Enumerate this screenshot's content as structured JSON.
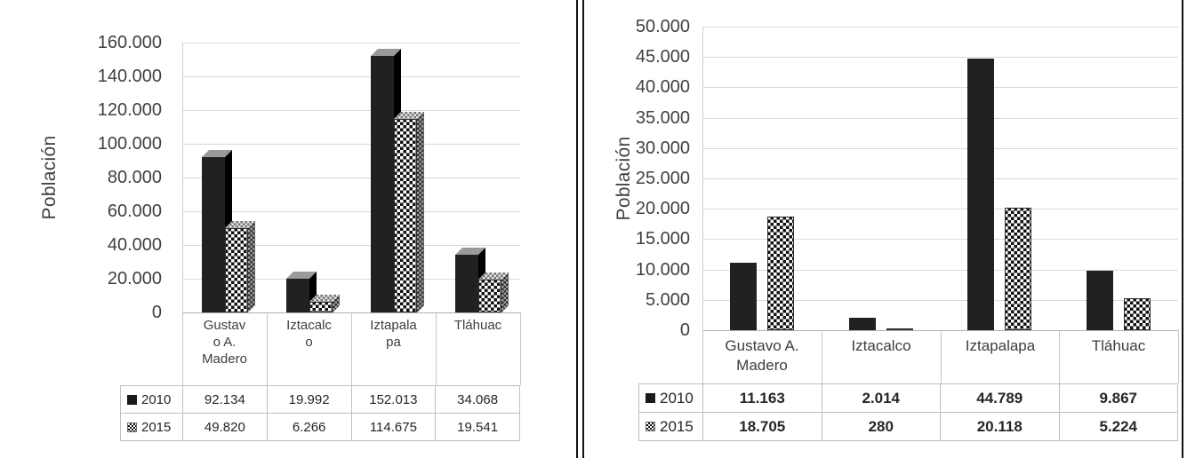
{
  "page": {
    "background": "#ffffff"
  },
  "chart_data": [
    {
      "type": "bar",
      "style": "3d-clustered-column",
      "title": "",
      "xlabel": "",
      "ylabel": "Población",
      "categories": [
        "Gustavo A. Madero",
        "Iztacalco",
        "Iztapalapa",
        "Tláhuac"
      ],
      "categories_display": [
        "Gustav\no A.\nMadero",
        "Iztacalc\no",
        "Iztapala\npa",
        "Tláhuac"
      ],
      "ylim": [
        0,
        160000
      ],
      "tick_step": 20000,
      "y_ticks": [
        "160.000",
        "140.000",
        "120.000",
        "100.000",
        "80.000",
        "60.000",
        "40.000",
        "20.000",
        "0"
      ],
      "grid": true,
      "legend_position": "data-table-left-column",
      "series": [
        {
          "name": "2010",
          "swatch": "solid-black-square",
          "values": [
            92134,
            19992,
            152013,
            34068
          ],
          "display": [
            "92.134",
            "19.992",
            "152.013",
            "34.068"
          ]
        },
        {
          "name": "2015",
          "swatch": "black-white-checkerboard-square",
          "values": [
            49820,
            6266,
            114675,
            19541
          ],
          "display": [
            "49.820",
            "6.266",
            "114.675",
            "19.541"
          ]
        }
      ],
      "colors": {
        "series_2010": "#212121",
        "series_2015": "checkerboard-black-white",
        "gridline": "#d9d9d9"
      }
    },
    {
      "type": "bar",
      "style": "flat-clustered-column",
      "title": "",
      "xlabel": "",
      "ylabel": "Población",
      "categories": [
        "Gustavo A. Madero",
        "Iztacalco",
        "Iztapalapa",
        "Tláhuac"
      ],
      "categories_display": [
        "Gustavo A.\nMadero",
        "Iztacalco",
        "Iztapalapa",
        "Tláhuac"
      ],
      "ylim": [
        0,
        50000
      ],
      "tick_step": 5000,
      "y_ticks": [
        "50.000",
        "45.000",
        "40.000",
        "35.000",
        "30.000",
        "25.000",
        "20.000",
        "15.000",
        "10.000",
        "5.000",
        "0"
      ],
      "grid": true,
      "legend_position": "data-table-left-column",
      "series": [
        {
          "name": "2010",
          "swatch": "solid-black-square",
          "values": [
            11163,
            2014,
            44789,
            9867
          ],
          "display": [
            "11.163",
            "2.014",
            "44.789",
            "9.867"
          ]
        },
        {
          "name": "2015",
          "swatch": "black-white-checkerboard-square",
          "values": [
            18705,
            280,
            20118,
            5224
          ],
          "display": [
            "18.705",
            "280",
            "20.118",
            "5.224"
          ]
        }
      ],
      "colors": {
        "series_2010": "#1a1a1a",
        "series_2015": "checkerboard-black-white",
        "gridline": "#d9d9d9"
      }
    }
  ]
}
